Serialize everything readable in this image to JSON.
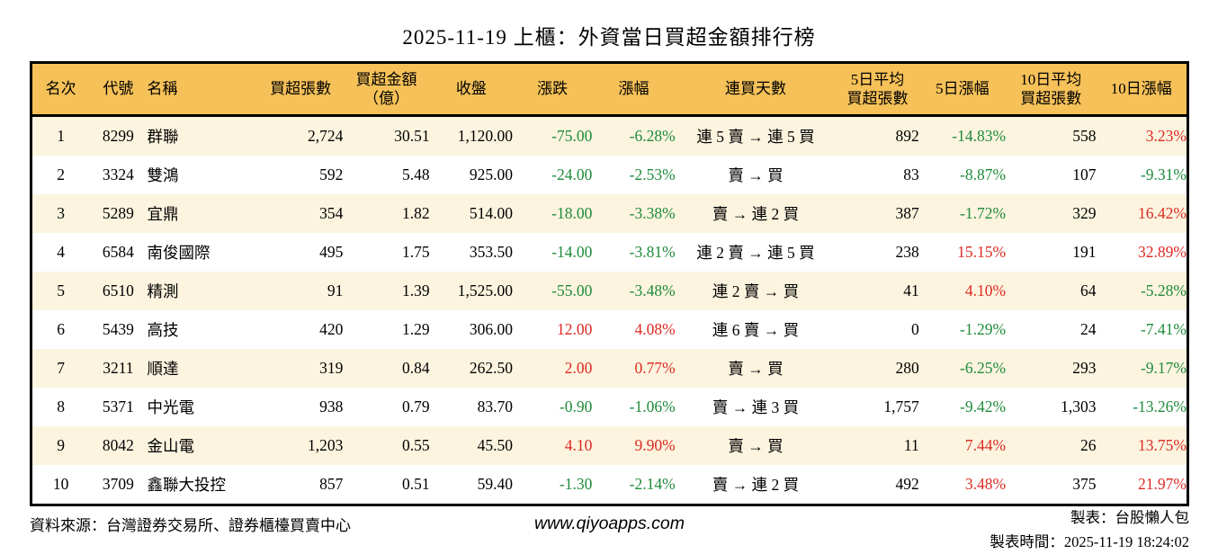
{
  "title": "2025-11-19 上櫃：外資當日買超金額排行榜",
  "colors": {
    "up_red": "#dd2a22",
    "down_green": "#1e8b3a",
    "header_bg": "#f5c158",
    "row_alt_bg": "#fcf4df"
  },
  "table": {
    "headers": [
      {
        "key": "rank",
        "label": "名次"
      },
      {
        "key": "code",
        "label": "代號"
      },
      {
        "key": "name",
        "label": "名稱"
      },
      {
        "key": "buy_lots",
        "label": "買超張數"
      },
      {
        "key": "buy_amount",
        "label": "買超金額\n（億）"
      },
      {
        "key": "close",
        "label": "收盤"
      },
      {
        "key": "change",
        "label": "漲跌"
      },
      {
        "key": "change_pct",
        "label": "漲幅"
      },
      {
        "key": "streak",
        "label": "連買天數"
      },
      {
        "key": "avg5",
        "label": "5日平均\n買超張數"
      },
      {
        "key": "chg5",
        "label": "5日漲幅"
      },
      {
        "key": "avg10",
        "label": "10日平均\n買超張數"
      },
      {
        "key": "chg10",
        "label": "10日漲幅"
      }
    ],
    "rows": [
      {
        "rank": "1",
        "code": "8299",
        "name": "群聯",
        "buy_lots": "2,724",
        "buy_amount": "30.51",
        "close": "1,120.00",
        "change": {
          "text": "-75.00",
          "dir": "down"
        },
        "change_pct": {
          "text": "-6.28%",
          "dir": "down"
        },
        "streak": "連 5 賣 → 連 5 買",
        "avg5": "892",
        "chg5": {
          "text": "-14.83%",
          "dir": "down"
        },
        "avg10": "558",
        "chg10": {
          "text": "3.23%",
          "dir": "up"
        }
      },
      {
        "rank": "2",
        "code": "3324",
        "name": "雙鴻",
        "buy_lots": "592",
        "buy_amount": "5.48",
        "close": "925.00",
        "change": {
          "text": "-24.00",
          "dir": "down"
        },
        "change_pct": {
          "text": "-2.53%",
          "dir": "down"
        },
        "streak": "賣 → 買",
        "avg5": "83",
        "chg5": {
          "text": "-8.87%",
          "dir": "down"
        },
        "avg10": "107",
        "chg10": {
          "text": "-9.31%",
          "dir": "down"
        }
      },
      {
        "rank": "3",
        "code": "5289",
        "name": "宜鼎",
        "buy_lots": "354",
        "buy_amount": "1.82",
        "close": "514.00",
        "change": {
          "text": "-18.00",
          "dir": "down"
        },
        "change_pct": {
          "text": "-3.38%",
          "dir": "down"
        },
        "streak": "賣 → 連 2 買",
        "avg5": "387",
        "chg5": {
          "text": "-1.72%",
          "dir": "down"
        },
        "avg10": "329",
        "chg10": {
          "text": "16.42%",
          "dir": "up"
        }
      },
      {
        "rank": "4",
        "code": "6584",
        "name": "南俊國際",
        "buy_lots": "495",
        "buy_amount": "1.75",
        "close": "353.50",
        "change": {
          "text": "-14.00",
          "dir": "down"
        },
        "change_pct": {
          "text": "-3.81%",
          "dir": "down"
        },
        "streak": "連 2 賣 → 連 5 買",
        "avg5": "238",
        "chg5": {
          "text": "15.15%",
          "dir": "up"
        },
        "avg10": "191",
        "chg10": {
          "text": "32.89%",
          "dir": "up"
        }
      },
      {
        "rank": "5",
        "code": "6510",
        "name": "精測",
        "buy_lots": "91",
        "buy_amount": "1.39",
        "close": "1,525.00",
        "change": {
          "text": "-55.00",
          "dir": "down"
        },
        "change_pct": {
          "text": "-3.48%",
          "dir": "down"
        },
        "streak": "連 2 賣 → 買",
        "avg5": "41",
        "chg5": {
          "text": "4.10%",
          "dir": "up"
        },
        "avg10": "64",
        "chg10": {
          "text": "-5.28%",
          "dir": "down"
        }
      },
      {
        "rank": "6",
        "code": "5439",
        "name": "高技",
        "buy_lots": "420",
        "buy_amount": "1.29",
        "close": "306.00",
        "change": {
          "text": "12.00",
          "dir": "up"
        },
        "change_pct": {
          "text": "4.08%",
          "dir": "up"
        },
        "streak": "連 6 賣 → 買",
        "avg5": "0",
        "chg5": {
          "text": "-1.29%",
          "dir": "down"
        },
        "avg10": "24",
        "chg10": {
          "text": "-7.41%",
          "dir": "down"
        }
      },
      {
        "rank": "7",
        "code": "3211",
        "name": "順達",
        "buy_lots": "319",
        "buy_amount": "0.84",
        "close": "262.50",
        "change": {
          "text": "2.00",
          "dir": "up"
        },
        "change_pct": {
          "text": "0.77%",
          "dir": "up"
        },
        "streak": "賣 → 買",
        "avg5": "280",
        "chg5": {
          "text": "-6.25%",
          "dir": "down"
        },
        "avg10": "293",
        "chg10": {
          "text": "-9.17%",
          "dir": "down"
        }
      },
      {
        "rank": "8",
        "code": "5371",
        "name": "中光電",
        "buy_lots": "938",
        "buy_amount": "0.79",
        "close": "83.70",
        "change": {
          "text": "-0.90",
          "dir": "down"
        },
        "change_pct": {
          "text": "-1.06%",
          "dir": "down"
        },
        "streak": "賣 → 連 3 買",
        "avg5": "1,757",
        "chg5": {
          "text": "-9.42%",
          "dir": "down"
        },
        "avg10": "1,303",
        "chg10": {
          "text": "-13.26%",
          "dir": "down"
        }
      },
      {
        "rank": "9",
        "code": "8042",
        "name": "金山電",
        "buy_lots": "1,203",
        "buy_amount": "0.55",
        "close": "45.50",
        "change": {
          "text": "4.10",
          "dir": "up"
        },
        "change_pct": {
          "text": "9.90%",
          "dir": "up"
        },
        "streak": "賣 → 買",
        "avg5": "11",
        "chg5": {
          "text": "7.44%",
          "dir": "up"
        },
        "avg10": "26",
        "chg10": {
          "text": "13.75%",
          "dir": "up"
        }
      },
      {
        "rank": "10",
        "code": "3709",
        "name": "鑫聯大投控",
        "buy_lots": "857",
        "buy_amount": "0.51",
        "close": "59.40",
        "change": {
          "text": "-1.30",
          "dir": "down"
        },
        "change_pct": {
          "text": "-2.14%",
          "dir": "down"
        },
        "streak": "賣 → 連 2 買",
        "avg5": "492",
        "chg5": {
          "text": "3.48%",
          "dir": "up"
        },
        "avg10": "375",
        "chg10": {
          "text": "21.97%",
          "dir": "up"
        }
      }
    ]
  },
  "footer": {
    "source": "資料來源：台灣證券交易所、證券櫃檯買賣中心",
    "website": "www.qiyoapps.com",
    "maker": "製表：台股懶人包",
    "time": "製表時間：2025-11-19 18:24:02"
  }
}
